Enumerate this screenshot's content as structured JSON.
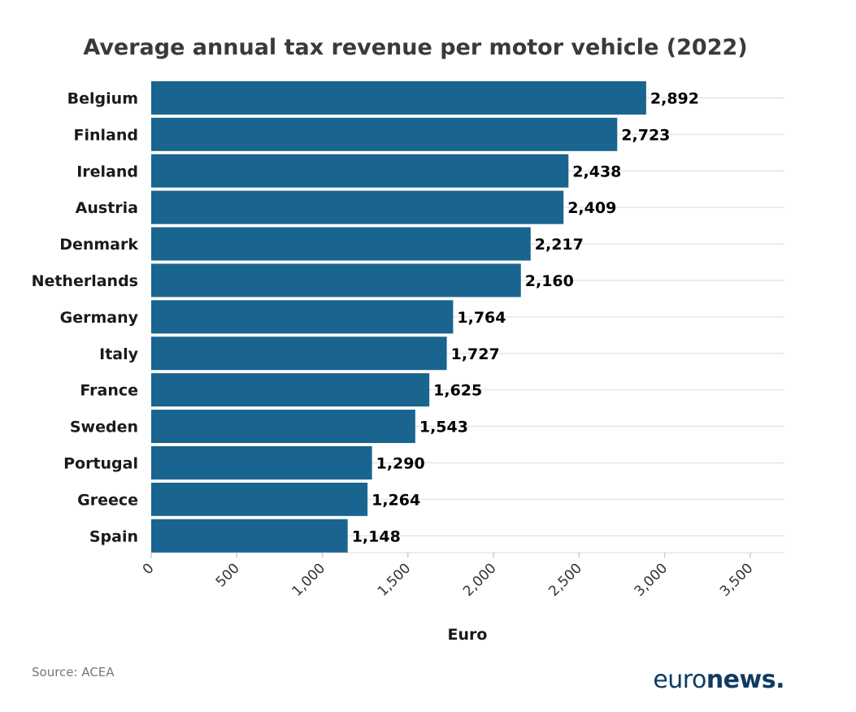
{
  "chart_data": {
    "type": "bar",
    "orientation": "horizontal",
    "title": "Average annual tax revenue per motor vehicle (2022)",
    "xlabel": "Euro",
    "ylabel": "",
    "categories": [
      "Belgium",
      "Finland",
      "Ireland",
      "Austria",
      "Denmark",
      "Netherlands",
      "Germany",
      "Italy",
      "France",
      "Sweden",
      "Portugal",
      "Greece",
      "Spain"
    ],
    "values": [
      2892,
      2723,
      2438,
      2409,
      2217,
      2160,
      1764,
      1727,
      1625,
      1543,
      1290,
      1264,
      1148
    ],
    "value_labels": [
      "2,892",
      "2,723",
      "2,438",
      "2,409",
      "2,217",
      "2,160",
      "1,764",
      "1,727",
      "1,625",
      "1,543",
      "1,290",
      "1,264",
      "1,148"
    ],
    "xlim": [
      0,
      3700
    ],
    "ticks": [
      0,
      500,
      1000,
      1500,
      2000,
      2500,
      3000,
      3500
    ],
    "tick_labels": [
      "0",
      "500",
      "1,000",
      "1,500",
      "2,000",
      "2,500",
      "3,000",
      "3,500"
    ],
    "grid": true,
    "bar_color": "#1a6490"
  },
  "footer": {
    "source": "Source: ACEA",
    "logo_light": "euro",
    "logo_bold": "news."
  }
}
